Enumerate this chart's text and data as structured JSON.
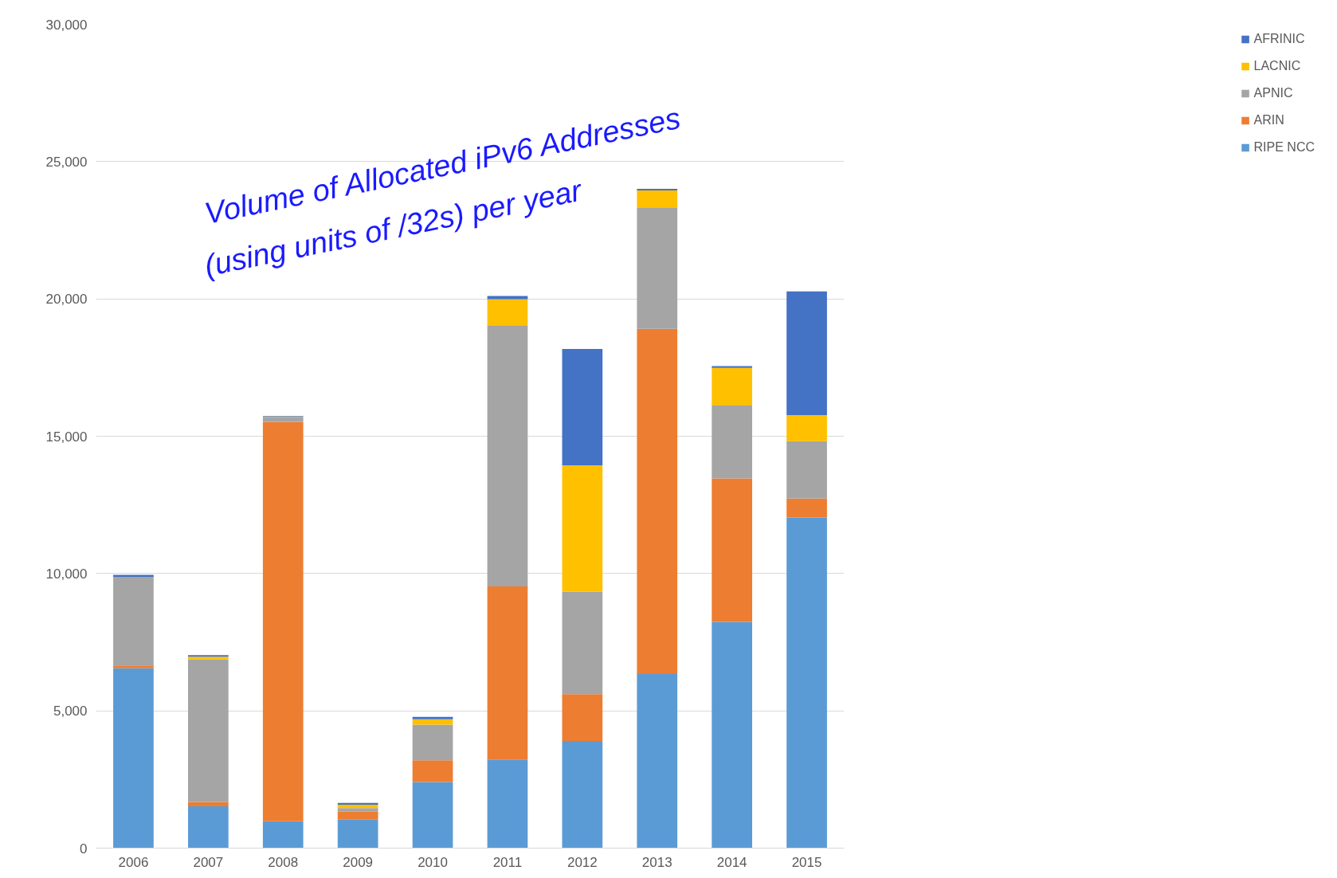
{
  "chart_data": {
    "type": "bar",
    "stacked": true,
    "categories": [
      "2006",
      "2007",
      "2008",
      "2009",
      "2010",
      "2011",
      "2012",
      "2013",
      "2014",
      "2015"
    ],
    "series": [
      {
        "name": "RIPE NCC",
        "color": "#5b9bd5",
        "values": [
          6550,
          1520,
          980,
          1050,
          2410,
          3230,
          3900,
          6340,
          8240,
          12040
        ]
      },
      {
        "name": "ARIN",
        "color": "#ed7d31",
        "values": [
          100,
          160,
          14540,
          280,
          790,
          6300,
          1710,
          12570,
          5220,
          690
        ]
      },
      {
        "name": "APNIC",
        "color": "#a5a5a5",
        "values": [
          3230,
          5190,
          160,
          130,
          1300,
          9510,
          3730,
          4400,
          2660,
          2090
        ]
      },
      {
        "name": "LACNIC",
        "color": "#ffc000",
        "values": [
          0,
          100,
          20,
          120,
          190,
          950,
          4600,
          640,
          1370,
          950
        ]
      },
      {
        "name": "AFRINIC",
        "color": "#4472c4",
        "values": [
          70,
          60,
          30,
          70,
          90,
          120,
          4240,
          60,
          60,
          4500
        ]
      }
    ],
    "ylim": [
      0,
      30000
    ],
    "yticks": [
      {
        "value": 0,
        "label": "0"
      },
      {
        "value": 5000,
        "label": "5,000"
      },
      {
        "value": 10000,
        "label": "10,000"
      },
      {
        "value": 15000,
        "label": "15,000"
      },
      {
        "value": 20000,
        "label": "20,000"
      },
      {
        "value": 25000,
        "label": "25,000"
      },
      {
        "value": 30000,
        "label": "30,000"
      }
    ],
    "grid": "y",
    "legend": "right",
    "annotations": [
      "Volume of Allocated iPv6 Addresses",
      "(using units of /32s) per year"
    ]
  }
}
